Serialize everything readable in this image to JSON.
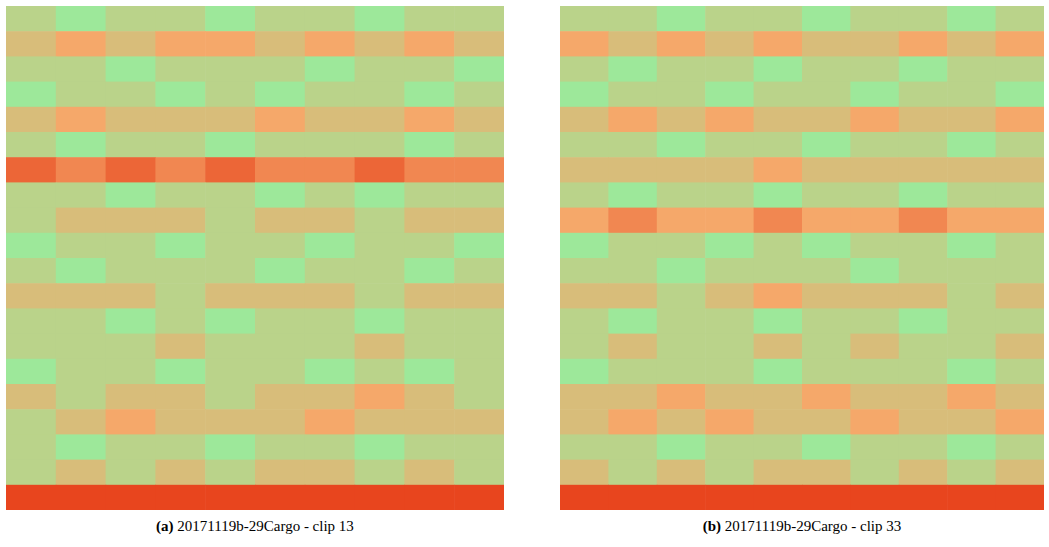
{
  "chart_data": [
    {
      "type": "heatmap",
      "panel": "(a)",
      "title": "20171119b-29Cargo - clip 13",
      "tick_labels": false,
      "cells": [
        [
          5,
          4,
          5,
          5,
          4,
          5,
          5,
          4,
          5,
          5
        ],
        [
          6,
          7,
          6,
          7,
          7,
          6,
          7,
          6,
          7,
          6
        ],
        [
          5,
          5,
          4,
          5,
          5,
          5,
          4,
          5,
          5,
          4
        ],
        [
          4,
          5,
          5,
          4,
          5,
          4,
          5,
          5,
          4,
          5
        ],
        [
          6,
          7,
          6,
          6,
          6,
          7,
          6,
          6,
          7,
          6
        ],
        [
          5,
          4,
          5,
          5,
          4,
          5,
          5,
          5,
          4,
          5
        ],
        [
          9,
          8,
          9,
          8,
          9,
          8,
          8,
          9,
          8,
          8
        ],
        [
          5,
          5,
          4,
          5,
          5,
          4,
          5,
          4,
          5,
          5
        ],
        [
          5,
          6,
          6,
          6,
          5,
          6,
          6,
          5,
          6,
          6
        ],
        [
          4,
          5,
          5,
          4,
          5,
          5,
          4,
          5,
          5,
          4
        ],
        [
          5,
          4,
          5,
          5,
          5,
          4,
          5,
          5,
          4,
          5
        ],
        [
          6,
          6,
          6,
          5,
          6,
          6,
          6,
          5,
          6,
          6
        ],
        [
          5,
          5,
          4,
          5,
          4,
          5,
          5,
          4,
          5,
          5
        ],
        [
          5,
          5,
          5,
          6,
          5,
          5,
          5,
          6,
          5,
          5
        ],
        [
          4,
          5,
          5,
          4,
          5,
          5,
          4,
          5,
          4,
          5
        ],
        [
          6,
          5,
          6,
          6,
          5,
          6,
          6,
          7,
          6,
          5
        ],
        [
          5,
          6,
          7,
          6,
          6,
          6,
          7,
          6,
          6,
          6
        ],
        [
          5,
          4,
          5,
          5,
          4,
          5,
          5,
          4,
          5,
          5
        ],
        [
          5,
          6,
          5,
          6,
          5,
          6,
          6,
          5,
          6,
          5
        ],
        [
          10,
          10,
          10,
          10,
          10,
          10,
          10,
          10,
          10,
          10
        ]
      ]
    },
    {
      "type": "heatmap",
      "panel": "(b)",
      "title": "20171119b-29Cargo - clip 33",
      "tick_labels": false,
      "cells": [
        [
          5,
          5,
          4,
          5,
          5,
          4,
          5,
          5,
          4,
          5
        ],
        [
          7,
          6,
          7,
          6,
          7,
          6,
          6,
          7,
          6,
          7
        ],
        [
          5,
          4,
          5,
          5,
          4,
          5,
          5,
          4,
          5,
          5
        ],
        [
          4,
          5,
          5,
          4,
          5,
          5,
          4,
          5,
          5,
          4
        ],
        [
          6,
          7,
          6,
          7,
          6,
          6,
          7,
          6,
          6,
          7
        ],
        [
          5,
          5,
          4,
          5,
          5,
          4,
          5,
          5,
          4,
          5
        ],
        [
          6,
          6,
          6,
          6,
          7,
          6,
          6,
          6,
          6,
          6
        ],
        [
          5,
          4,
          5,
          5,
          4,
          5,
          5,
          4,
          5,
          5
        ],
        [
          7,
          8,
          7,
          7,
          8,
          7,
          7,
          8,
          7,
          7
        ],
        [
          4,
          5,
          5,
          4,
          5,
          4,
          5,
          5,
          4,
          5
        ],
        [
          5,
          5,
          4,
          5,
          5,
          5,
          4,
          5,
          5,
          5
        ],
        [
          6,
          6,
          5,
          6,
          7,
          6,
          6,
          6,
          5,
          6
        ],
        [
          5,
          4,
          5,
          5,
          4,
          5,
          5,
          4,
          5,
          5
        ],
        [
          5,
          6,
          5,
          5,
          6,
          5,
          6,
          5,
          5,
          6
        ],
        [
          4,
          5,
          5,
          5,
          4,
          5,
          5,
          5,
          4,
          5
        ],
        [
          6,
          6,
          7,
          6,
          6,
          7,
          6,
          6,
          7,
          6
        ],
        [
          6,
          7,
          6,
          7,
          6,
          6,
          7,
          6,
          6,
          7
        ],
        [
          5,
          5,
          4,
          5,
          5,
          4,
          5,
          5,
          4,
          5
        ],
        [
          6,
          5,
          6,
          5,
          6,
          6,
          5,
          6,
          5,
          6
        ],
        [
          10,
          10,
          10,
          10,
          10,
          10,
          10,
          10,
          10,
          10
        ]
      ]
    }
  ]
}
